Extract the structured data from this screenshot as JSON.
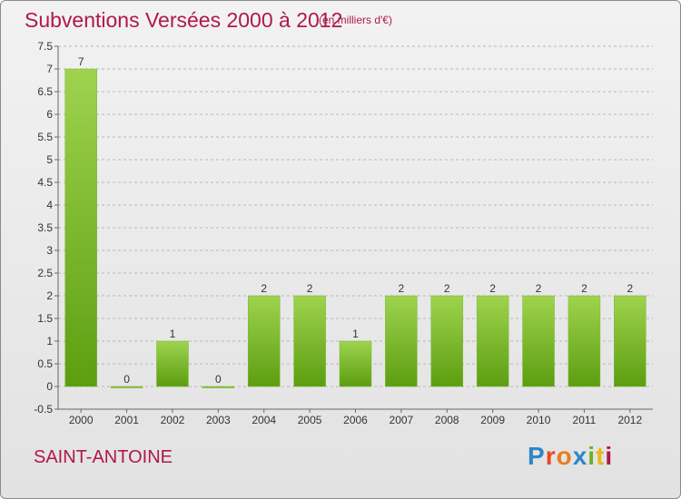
{
  "header": {
    "title": "Subventions Versées 2000 à 2012",
    "subtitle": "(en milliers d'€)"
  },
  "footer": {
    "commune": "SAINT-ANTOINE",
    "logo_text": "Proxiti"
  },
  "colors": {
    "title": "#b0184a",
    "bar_top": "#9fd34f",
    "bar_bottom": "#5c9e10",
    "grid": "#b8b8b8"
  },
  "chart_data": {
    "type": "bar",
    "categories": [
      "2000",
      "2001",
      "2002",
      "2003",
      "2004",
      "2005",
      "2006",
      "2007",
      "2008",
      "2009",
      "2010",
      "2011",
      "2012"
    ],
    "values": [
      7,
      0,
      1,
      0,
      2,
      2,
      1,
      2,
      2,
      2,
      2,
      2,
      2
    ],
    "title": "Subventions Versées 2000 à 2012",
    "subtitle": "(en milliers d'€)",
    "xlabel": "",
    "ylabel": "",
    "ylim": [
      -0.5,
      7.5
    ],
    "yticks": [
      "-0.5",
      "0",
      "0.5",
      "1",
      "1.5",
      "2",
      "2.5",
      "3",
      "3.5",
      "4",
      "4.5",
      "5",
      "5.5",
      "6",
      "6.5",
      "7",
      "7.5"
    ],
    "grid": "horizontal dashed",
    "legend": "none"
  }
}
